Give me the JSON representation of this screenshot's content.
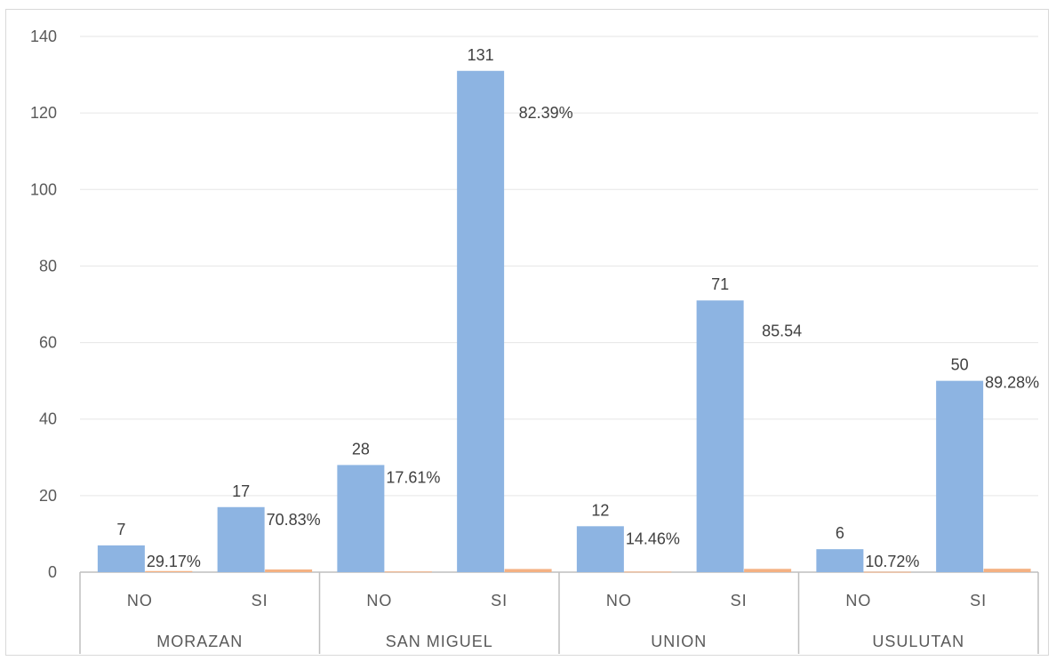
{
  "chart_data": {
    "type": "bar",
    "title": "",
    "xlabel": "",
    "ylabel": "",
    "ylim": [
      0,
      140
    ],
    "y_ticks": [
      "0",
      "20",
      "40",
      "60",
      "80",
      "100",
      "120",
      "140"
    ],
    "grid": true,
    "legend": "none",
    "groups": [
      "MORAZAN",
      "SAN MIGUEL",
      "UNION",
      "USULUTAN"
    ],
    "categories": [
      "NO",
      "SI",
      "NO",
      "SI",
      "NO",
      "SI",
      "NO",
      "SI"
    ],
    "series": [
      {
        "color": "#8db4e2",
        "values": [
          7,
          17,
          28,
          131,
          12,
          71,
          6,
          50
        ],
        "labels": [
          "7",
          "17",
          "28",
          "131",
          "12",
          "71",
          "6",
          "50"
        ]
      },
      {
        "color": "#f4b183",
        "values": [
          0.2917,
          0.7083,
          0.1761,
          0.8239,
          0.1446,
          0.8554,
          0.1072,
          0.8928
        ],
        "labels": [
          "29.17%",
          "70.83%",
          "17.61%",
          "82.39%",
          "14.46%",
          "85.54",
          "10.72%",
          "89.28%"
        ]
      }
    ]
  }
}
